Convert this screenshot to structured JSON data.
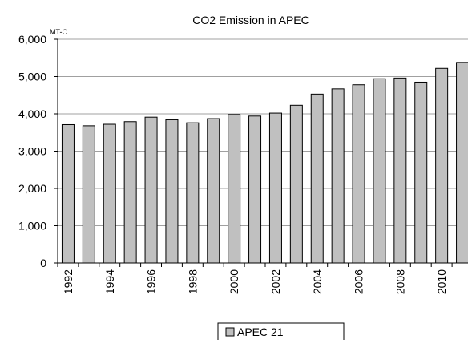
{
  "chart_data": {
    "type": "bar",
    "title": "CO2 Emission in APEC",
    "ylabel": "MT-C",
    "xlabel": "",
    "ylim": [
      0,
      6000
    ],
    "y_ticks": [
      0,
      1000,
      2000,
      3000,
      4000,
      5000,
      6000
    ],
    "y_tick_labels": [
      "0",
      "1,000",
      "2,000",
      "3,000",
      "4,000",
      "5,000",
      "6,000"
    ],
    "categories": [
      "1992",
      "1993",
      "1994",
      "1995",
      "1996",
      "1997",
      "1998",
      "1999",
      "2000",
      "2001",
      "2002",
      "2003",
      "2004",
      "2005",
      "2006",
      "2007",
      "2008",
      "2009",
      "2010",
      "2011"
    ],
    "x_tick_labels": [
      "1992",
      "",
      "1994",
      "",
      "1996",
      "",
      "1998",
      "",
      "2000",
      "",
      "2002",
      "",
      "2004",
      "",
      "2006",
      "",
      "2008",
      "",
      "2010",
      ""
    ],
    "series": [
      {
        "name": "APEC 21",
        "color": "#c0c0c0",
        "values": [
          3710,
          3680,
          3720,
          3790,
          3910,
          3840,
          3760,
          3870,
          3980,
          3940,
          4020,
          4230,
          4530,
          4670,
          4780,
          4940,
          4960,
          4850,
          5220,
          5380
        ]
      }
    ],
    "grid": true,
    "legend_position": "bottom"
  }
}
